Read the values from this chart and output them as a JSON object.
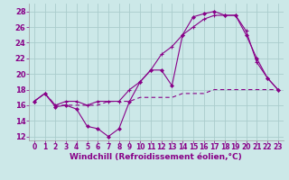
{
  "background_color": "#cce8e8",
  "grid_color": "#aacccc",
  "line_color": "#880088",
  "xlabel": "Windchill (Refroidissement éolien,°C)",
  "xlabel_fontsize": 6.5,
  "xtick_fontsize": 5.5,
  "ytick_fontsize": 6,
  "xlim": [
    -0.5,
    23.5
  ],
  "ylim": [
    11.5,
    29
  ],
  "yticks": [
    12,
    14,
    16,
    18,
    20,
    22,
    24,
    26,
    28
  ],
  "xticks": [
    0,
    1,
    2,
    3,
    4,
    5,
    6,
    7,
    8,
    9,
    10,
    11,
    12,
    13,
    14,
    15,
    16,
    17,
    18,
    19,
    20,
    21,
    22,
    23
  ],
  "line1_x": [
    0,
    1,
    2,
    3,
    4,
    5,
    6,
    7,
    8,
    9,
    10,
    11,
    12,
    13,
    14,
    15,
    16,
    17,
    18,
    19,
    20,
    21,
    22,
    23
  ],
  "line1_y": [
    16.5,
    17.5,
    15.8,
    16.0,
    15.5,
    13.3,
    13.0,
    12.0,
    13.0,
    16.5,
    19.0,
    20.5,
    20.5,
    18.5,
    25.0,
    27.3,
    27.7,
    28.0,
    27.5,
    27.5,
    25.0,
    22.0,
    19.5,
    18.0
  ],
  "line2_x": [
    0,
    1,
    2,
    3,
    4,
    5,
    6,
    7,
    8,
    9,
    10,
    11,
    12,
    13,
    14,
    15,
    16,
    17,
    18,
    19,
    20,
    21,
    22,
    23
  ],
  "line2_y": [
    16.5,
    17.5,
    16.0,
    16.0,
    16.0,
    16.0,
    16.0,
    16.5,
    16.5,
    16.5,
    17.0,
    17.0,
    17.0,
    17.0,
    17.5,
    17.5,
    17.5,
    18.0,
    18.0,
    18.0,
    18.0,
    18.0,
    18.0,
    18.0
  ],
  "line3_x": [
    0,
    1,
    2,
    3,
    4,
    5,
    6,
    7,
    8,
    9,
    10,
    11,
    12,
    13,
    14,
    15,
    16,
    17,
    18,
    19,
    20,
    21,
    22,
    23
  ],
  "line3_y": [
    16.5,
    17.5,
    16.0,
    16.5,
    16.5,
    16.0,
    16.5,
    16.5,
    16.5,
    18.0,
    19.0,
    20.5,
    22.5,
    23.5,
    25.0,
    26.0,
    27.0,
    27.5,
    27.5,
    27.5,
    25.5,
    21.5,
    19.5,
    18.0
  ]
}
